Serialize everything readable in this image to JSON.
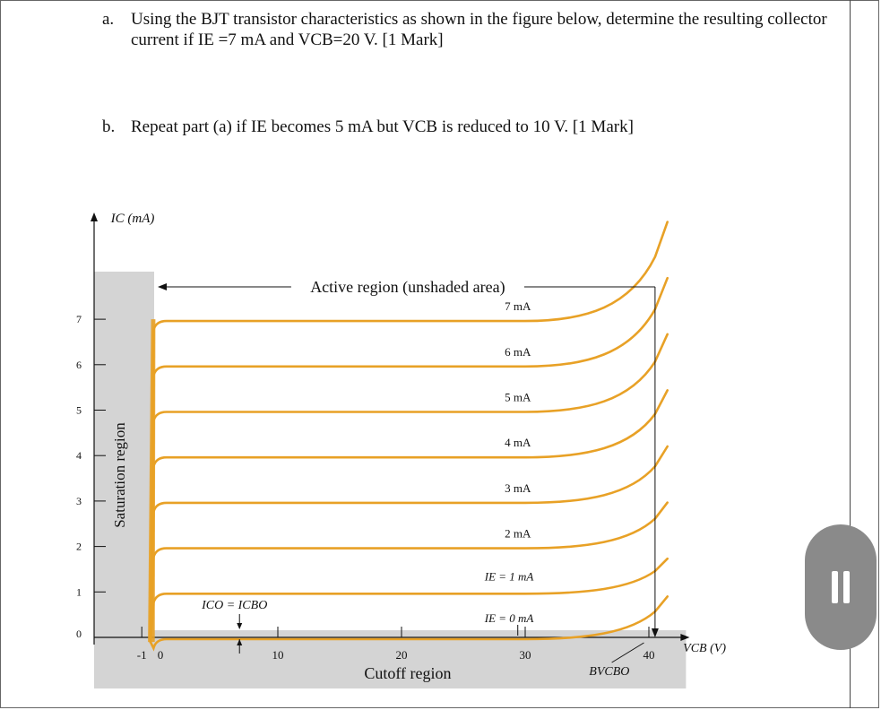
{
  "questions": {
    "a": {
      "label": "a.",
      "text": "Using the BJT transistor characteristics as shown in the figure below, determine the resulting collector current if IE =7 mA and VCB=20 V. [1 Mark]"
    },
    "b": {
      "label": "b.",
      "text": "Repeat part (a) if IE becomes 5 mA but VCB is reduced to 10 V. [1 Mark]"
    }
  },
  "chart_data": {
    "type": "line",
    "xlabel": "VCB (V)",
    "ylabel": "IC (mA)",
    "xlim": [
      -2,
      43
    ],
    "ylim": [
      -0.5,
      8.3
    ],
    "x_ticks": [
      -1,
      0,
      10,
      20,
      30,
      40
    ],
    "y_ticks": [
      0,
      1,
      2,
      3,
      4,
      5,
      6,
      7
    ],
    "series": [
      {
        "name": "IE = 0 mA",
        "iE": 0
      },
      {
        "name": "IE = 1 mA",
        "iE": 1
      },
      {
        "name": "2 mA",
        "iE": 2
      },
      {
        "name": "3 mA",
        "iE": 3
      },
      {
        "name": "4 mA",
        "iE": 4
      },
      {
        "name": "5 mA",
        "iE": 5
      },
      {
        "name": "6 mA",
        "iE": 6
      },
      {
        "name": "7 mA",
        "iE": 7
      }
    ],
    "annotations": {
      "active": "Active region (unshaded area)",
      "saturation": "Saturation region",
      "cutoff": "Cutoff region",
      "ico": "ICO = ICBO",
      "bvcbo": "BVCBO"
    },
    "breakdown_voltage": 40,
    "line_color": "#e8a126",
    "shade_color": "#d4d4d4"
  }
}
